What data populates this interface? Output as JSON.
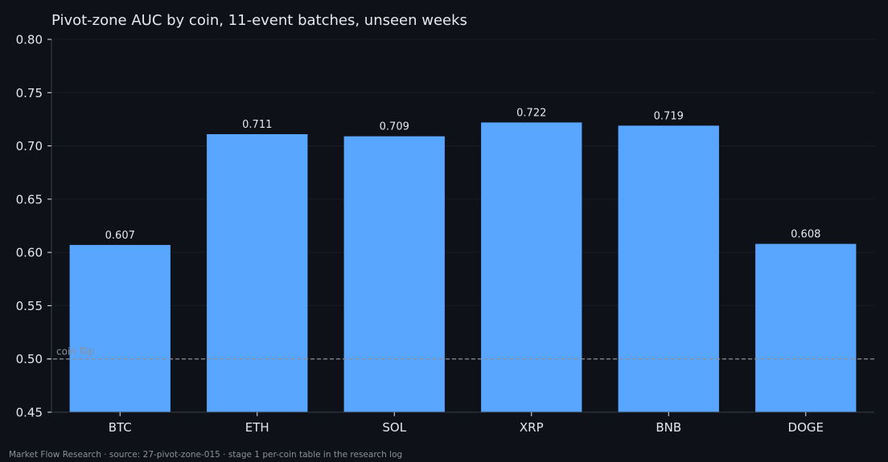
{
  "chart_data": {
    "type": "bar",
    "title": "Pivot-zone AUC by coin, 11-event batches, unseen weeks",
    "categories": [
      "BTC",
      "ETH",
      "SOL",
      "XRP",
      "BNB",
      "DOGE"
    ],
    "values": [
      0.607,
      0.711,
      0.709,
      0.722,
      0.719,
      0.608
    ],
    "value_labels": [
      "0.607",
      "0.711",
      "0.709",
      "0.722",
      "0.719",
      "0.608"
    ],
    "ylim": [
      0.45,
      0.8
    ],
    "yticks": [
      0.45,
      0.5,
      0.55,
      0.6,
      0.65,
      0.7,
      0.75,
      0.8
    ],
    "ytick_labels": [
      "0.45",
      "0.50",
      "0.55",
      "0.60",
      "0.65",
      "0.70",
      "0.75",
      "0.80"
    ],
    "xlabel": "",
    "ylabel": "",
    "grid": true,
    "reference_line": {
      "y": 0.5,
      "label": "coin flip",
      "style": "dashed"
    }
  },
  "footer": "Market Flow Research · source: 27-pivot-zone-015 · stage 1 per-coin table in the research log",
  "colors": {
    "background": "#0e1117",
    "bar": "#58a6ff",
    "text": "#e6e8eb",
    "grid": "#1a1e26",
    "axis": "#3a3f48",
    "reference": "#8b9099"
  }
}
